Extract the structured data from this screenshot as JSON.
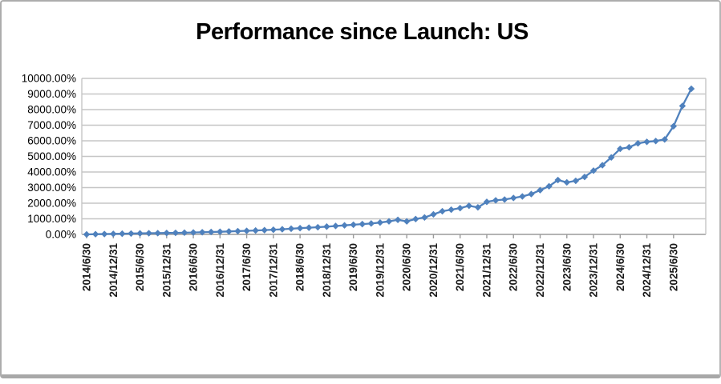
{
  "window": {
    "background": "#ffffff",
    "frame_border_color": "#adadad"
  },
  "chart_data": {
    "type": "line",
    "title": "Performance since Launch: US",
    "xlabel": "",
    "ylabel": "",
    "ylim": [
      0,
      10000
    ],
    "y_tick_step_percent": 1000,
    "y_tick_labels": [
      "10000.00%",
      "9000.00%",
      "8000.00%",
      "7000.00%",
      "6000.00%",
      "5000.00%",
      "4000.00%",
      "3000.00%",
      "2000.00%",
      "1000.00%",
      "0.00%"
    ],
    "x_labels": [
      "2014/6/30",
      "2014/12/31",
      "2015/6/30",
      "2015/12/31",
      "2016/6/30",
      "2016/12/31",
      "2017/6/30",
      "2017/12/31",
      "2018/6/30",
      "2018/12/31",
      "2019/6/30",
      "2019/12/31",
      "2020/6/30",
      "2020/12/31",
      "2021/6/30",
      "2021/12/31",
      "2022/6/30",
      "2022/12/31",
      "2023/6/30",
      "2023/12/31",
      "2024/6/30",
      "2024/12/31",
      "2025/6/30"
    ],
    "x_label_every": 3,
    "grid": true,
    "legend_position": "none",
    "line_color": "#4f81bd",
    "marker": "diamond",
    "gridline_color": "#c6c6c6",
    "axis_color": "#9b9b9b",
    "values_percent": [
      0,
      15,
      25,
      35,
      45,
      55,
      65,
      75,
      80,
      90,
      100,
      110,
      125,
      140,
      155,
      170,
      190,
      210,
      230,
      250,
      275,
      300,
      330,
      365,
      400,
      430,
      460,
      500,
      540,
      580,
      620,
      660,
      700,
      760,
      835,
      935,
      835,
      985,
      1085,
      1285,
      1485,
      1585,
      1685,
      1835,
      1735,
      2085,
      2185,
      2235,
      2335,
      2435,
      2585,
      2835,
      3085,
      3485,
      3335,
      3435,
      3685,
      4085,
      4435,
      4935,
      5485,
      5585,
      5835,
      5935,
      5985,
      6085,
      6935,
      8235,
      9335
    ]
  }
}
